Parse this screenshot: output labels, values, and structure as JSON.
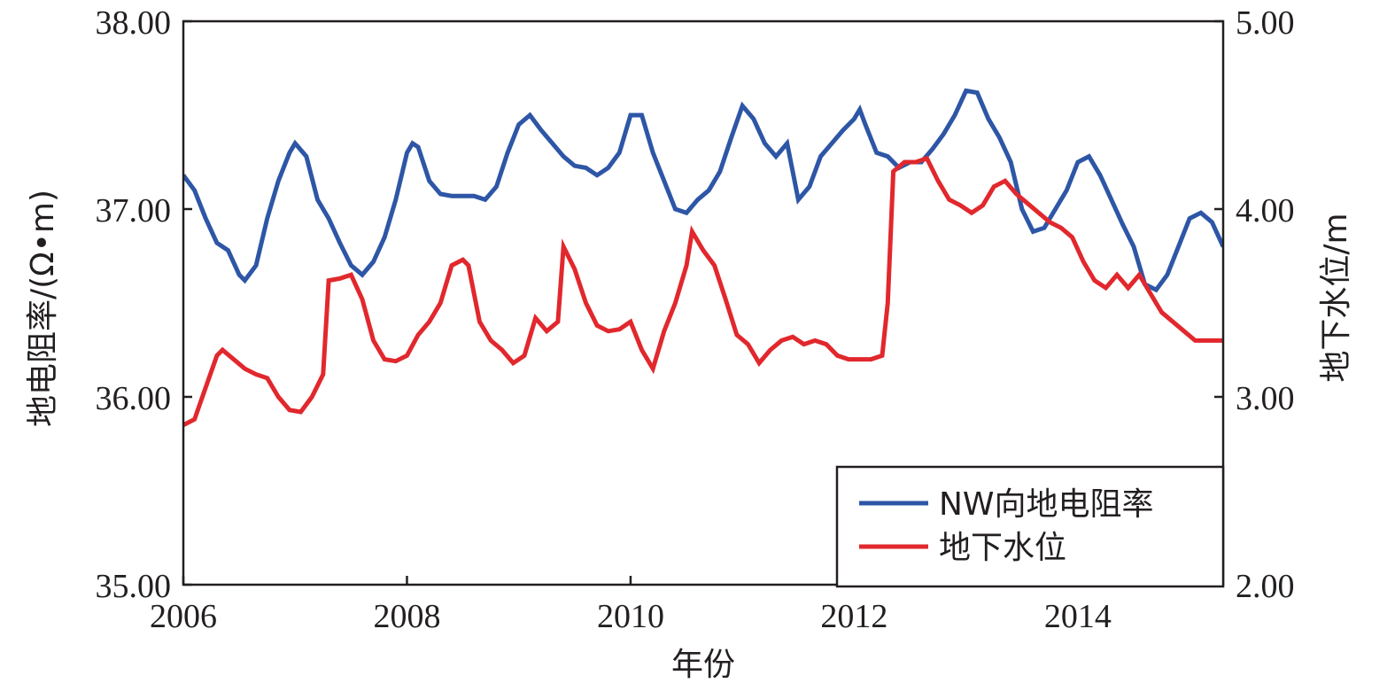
{
  "chart_data": {
    "type": "line",
    "title": "",
    "xlabel": "年份",
    "ylabel_left": "地电阻率/(Ω•m)",
    "ylabel_right": "地下水位/m",
    "xlim": [
      2006,
      2015.3
    ],
    "xticks": [
      "2006",
      "2008",
      "2010",
      "2012",
      "2014"
    ],
    "ylim_left": [
      35.0,
      38.0
    ],
    "yticks_left": [
      "35.00",
      "36.00",
      "37.00",
      "38.00"
    ],
    "ylim_right": [
      2.0,
      5.0
    ],
    "yticks_right": [
      "2.00",
      "3.00",
      "4.00",
      "5.00"
    ],
    "grid": false,
    "legend_position": "bottom-right",
    "series": [
      {
        "name": "NW向地电阻率",
        "axis": "left",
        "color": "#2e56a6",
        "x": [
          2006.0,
          2006.1,
          2006.2,
          2006.3,
          2006.4,
          2006.5,
          2006.55,
          2006.65,
          2006.75,
          2006.85,
          2006.95,
          2007.0,
          2007.1,
          2007.2,
          2007.3,
          2007.4,
          2007.5,
          2007.6,
          2007.7,
          2007.8,
          2007.9,
          2008.0,
          2008.05,
          2008.1,
          2008.2,
          2008.3,
          2008.4,
          2008.5,
          2008.6,
          2008.7,
          2008.8,
          2008.9,
          2009.0,
          2009.1,
          2009.2,
          2009.3,
          2009.4,
          2009.5,
          2009.6,
          2009.7,
          2009.8,
          2009.9,
          2010.0,
          2010.1,
          2010.2,
          2010.3,
          2010.4,
          2010.5,
          2010.6,
          2010.7,
          2010.8,
          2010.9,
          2011.0,
          2011.1,
          2011.2,
          2011.3,
          2011.4,
          2011.5,
          2011.6,
          2011.7,
          2011.8,
          2011.9,
          2012.0,
          2012.05,
          2012.1,
          2012.2,
          2012.3,
          2012.4,
          2012.5,
          2012.6,
          2012.7,
          2012.8,
          2012.9,
          2013.0,
          2013.1,
          2013.2,
          2013.3,
          2013.4,
          2013.5,
          2013.6,
          2013.7,
          2013.8,
          2013.9,
          2014.0,
          2014.1,
          2014.2,
          2014.3,
          2014.4,
          2014.5,
          2014.6,
          2014.7,
          2014.8,
          2014.9,
          2015.0,
          2015.1,
          2015.2,
          2015.3
        ],
        "values": [
          37.18,
          37.1,
          36.95,
          36.82,
          36.78,
          36.65,
          36.62,
          36.7,
          36.95,
          37.15,
          37.3,
          37.35,
          37.28,
          37.05,
          36.95,
          36.82,
          36.7,
          36.65,
          36.72,
          36.85,
          37.05,
          37.3,
          37.35,
          37.33,
          37.15,
          37.08,
          37.07,
          37.07,
          37.07,
          37.05,
          37.12,
          37.3,
          37.45,
          37.5,
          37.42,
          37.35,
          37.28,
          37.23,
          37.22,
          37.18,
          37.22,
          37.3,
          37.5,
          37.5,
          37.3,
          37.15,
          37.0,
          36.98,
          37.05,
          37.1,
          37.2,
          37.38,
          37.55,
          37.48,
          37.35,
          37.28,
          37.35,
          37.05,
          37.12,
          37.28,
          37.35,
          37.42,
          37.48,
          37.53,
          37.45,
          37.3,
          37.28,
          37.22,
          37.25,
          37.25,
          37.32,
          37.4,
          37.5,
          37.63,
          37.62,
          37.48,
          37.38,
          37.25,
          37.0,
          36.88,
          36.9,
          37.0,
          37.1,
          37.25,
          37.28,
          37.18,
          37.05,
          36.92,
          36.8,
          36.6,
          36.57,
          36.65,
          36.8,
          36.95,
          36.98,
          36.93,
          36.8
        ]
      },
      {
        "name": "地下水位",
        "axis": "right",
        "color": "#e1282d",
        "x": [
          2006.0,
          2006.1,
          2006.2,
          2006.3,
          2006.35,
          2006.45,
          2006.55,
          2006.65,
          2006.75,
          2006.85,
          2006.95,
          2007.05,
          2007.15,
          2007.25,
          2007.3,
          2007.4,
          2007.5,
          2007.6,
          2007.7,
          2007.8,
          2007.9,
          2008.0,
          2008.1,
          2008.2,
          2008.3,
          2008.4,
          2008.5,
          2008.55,
          2008.65,
          2008.75,
          2008.85,
          2008.95,
          2009.05,
          2009.15,
          2009.25,
          2009.35,
          2009.4,
          2009.5,
          2009.6,
          2009.7,
          2009.8,
          2009.9,
          2010.0,
          2010.1,
          2010.2,
          2010.3,
          2010.4,
          2010.5,
          2010.55,
          2010.65,
          2010.75,
          2010.85,
          2010.95,
          2011.05,
          2011.15,
          2011.25,
          2011.35,
          2011.45,
          2011.55,
          2011.65,
          2011.75,
          2011.85,
          2011.95,
          2012.05,
          2012.15,
          2012.25,
          2012.3,
          2012.35,
          2012.45,
          2012.55,
          2012.65,
          2012.75,
          2012.85,
          2012.95,
          2013.05,
          2013.15,
          2013.25,
          2013.35,
          2013.45,
          2013.55,
          2013.65,
          2013.75,
          2013.85,
          2013.95,
          2014.05,
          2014.15,
          2014.25,
          2014.35,
          2014.45,
          2014.55,
          2014.65,
          2014.75,
          2014.85,
          2014.95,
          2015.05,
          2015.15,
          2015.3
        ],
        "values": [
          2.85,
          2.88,
          3.05,
          3.22,
          3.25,
          3.2,
          3.15,
          3.12,
          3.1,
          3.0,
          2.93,
          2.92,
          3.0,
          3.12,
          3.62,
          3.63,
          3.65,
          3.52,
          3.3,
          3.2,
          3.19,
          3.22,
          3.33,
          3.4,
          3.5,
          3.7,
          3.73,
          3.7,
          3.4,
          3.3,
          3.25,
          3.18,
          3.22,
          3.42,
          3.35,
          3.4,
          3.8,
          3.68,
          3.5,
          3.38,
          3.35,
          3.36,
          3.4,
          3.25,
          3.15,
          3.35,
          3.5,
          3.7,
          3.88,
          3.78,
          3.7,
          3.52,
          3.33,
          3.28,
          3.18,
          3.25,
          3.3,
          3.32,
          3.28,
          3.3,
          3.28,
          3.22,
          3.2,
          3.2,
          3.2,
          3.22,
          3.5,
          4.2,
          4.25,
          4.25,
          4.27,
          4.15,
          4.05,
          4.02,
          3.98,
          4.02,
          4.12,
          4.15,
          4.08,
          4.03,
          3.98,
          3.93,
          3.9,
          3.85,
          3.72,
          3.62,
          3.58,
          3.65,
          3.58,
          3.65,
          3.55,
          3.45,
          3.4,
          3.35,
          3.3,
          3.3,
          3.3
        ]
      }
    ]
  }
}
